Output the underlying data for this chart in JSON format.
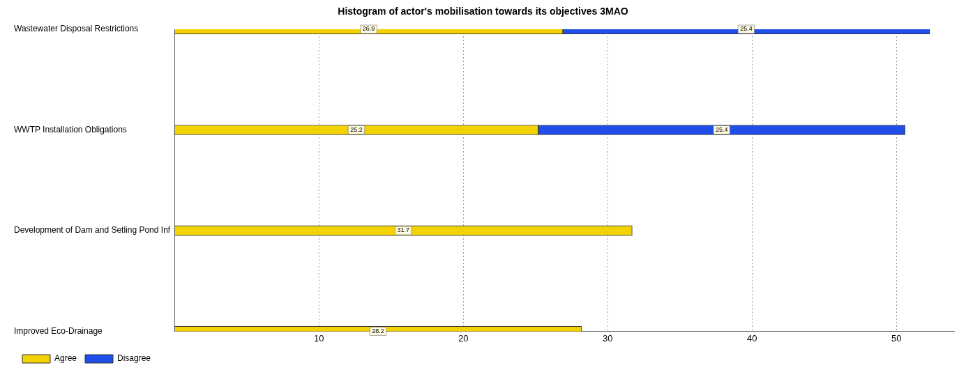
{
  "chart_data": {
    "type": "bar",
    "title": "Histogram of actor's mobilisation towards its objectives 3MAO",
    "orientation": "horizontal",
    "stacked": true,
    "categories": [
      "Wastewater Disposal Restrictions",
      "WWTP Installation Obligations",
      "Development of Dam and Setling Pond Inf",
      "Improved Eco-Drainage"
    ],
    "series": [
      {
        "name": "Agree",
        "color": "#f2d200",
        "values": [
          26.9,
          25.2,
          31.7,
          28.2
        ]
      },
      {
        "name": "Disagree",
        "color": "#1f4fe8",
        "values": [
          25.4,
          25.4,
          null,
          null
        ]
      }
    ],
    "xlim": [
      0,
      54
    ],
    "xticks": [
      10,
      20,
      30,
      40,
      50
    ],
    "grid": "x",
    "legend": "bottom left",
    "data_labels": true
  }
}
